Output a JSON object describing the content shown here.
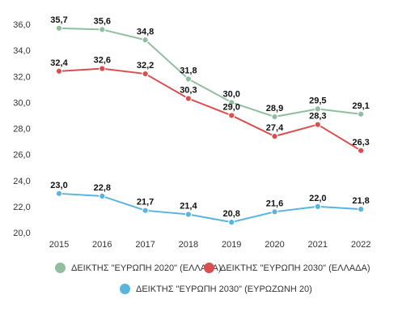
{
  "chart_data": {
    "type": "line",
    "x": [
      "2015",
      "2016",
      "2017",
      "2018",
      "2019",
      "2020",
      "2021",
      "2022"
    ],
    "y_ticks": [
      "20,0",
      "22,0",
      "24,0",
      "26,0",
      "28,0",
      "30,0",
      "32,0",
      "34,0",
      "36,0"
    ],
    "ylim": [
      20,
      36
    ],
    "grid": false,
    "legend_placement": "bottom",
    "series": [
      {
        "name": "ΔΕΙΚΤΗΣ \"ΕΥΡΩΠΗ 2020\" (ΕΛΛΑΔΑ)",
        "color": "#8fbf9f",
        "values": [
          35.7,
          35.6,
          34.8,
          31.8,
          30.0,
          28.9,
          29.5,
          29.1
        ],
        "labels": [
          "35,7",
          "35,6",
          "34,8",
          "31,8",
          "30,0",
          "28,9",
          "29,5",
          "29,1"
        ]
      },
      {
        "name": "ΔΕΙΚΤΗΣ \"ΕΥΡΩΠΗ 2030\" (ΕΛΛΑΔΑ)",
        "color": "#d94f4f",
        "values": [
          32.4,
          32.6,
          32.2,
          30.3,
          29.0,
          27.4,
          28.3,
          26.3
        ],
        "labels": [
          "32,4",
          "32,6",
          "32,2",
          "30,3",
          "29,0",
          "27,4",
          "28,3",
          "26,3"
        ]
      },
      {
        "name": "ΔΕΙΚΤΗΣ \"ΕΥΡΩΠΗ 2030\" (ΕΥΡΩΖΩΝΗ 20)",
        "color": "#5ab4e0",
        "values": [
          23.0,
          22.8,
          21.7,
          21.4,
          20.8,
          21.6,
          22.0,
          21.8
        ],
        "labels": [
          "23,0",
          "22,8",
          "21,7",
          "21,4",
          "20,8",
          "21,6",
          "22,0",
          "21,8"
        ]
      }
    ]
  }
}
